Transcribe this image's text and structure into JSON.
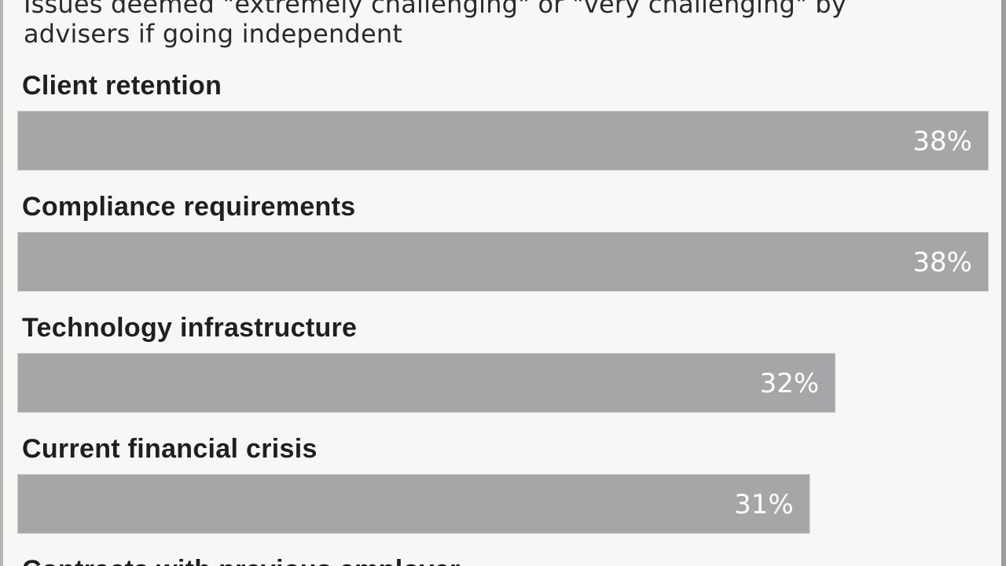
{
  "chart_data": {
    "type": "bar",
    "orientation": "horizontal",
    "subtitle_lines": [
      "Issues deemed \"extremely challenging\" or \"very challenging\" by",
      "advisers if going independent"
    ],
    "categories": [
      "Client retention",
      "Compliance requirements",
      "Technology infrastructure",
      "Current financial crisis",
      "Contracts with previous employer"
    ],
    "values": [
      38,
      38,
      32,
      31,
      null
    ],
    "value_labels": [
      "38%",
      "38%",
      "32%",
      "31%",
      ""
    ],
    "unit": "%",
    "xlim": [
      0,
      38
    ],
    "grid": false,
    "legend": "none",
    "colors": {
      "bar": "#a4a6a8",
      "value_text": "#ffffff",
      "label_text": "#1f1f1f",
      "background": "#f7f7f6"
    }
  }
}
